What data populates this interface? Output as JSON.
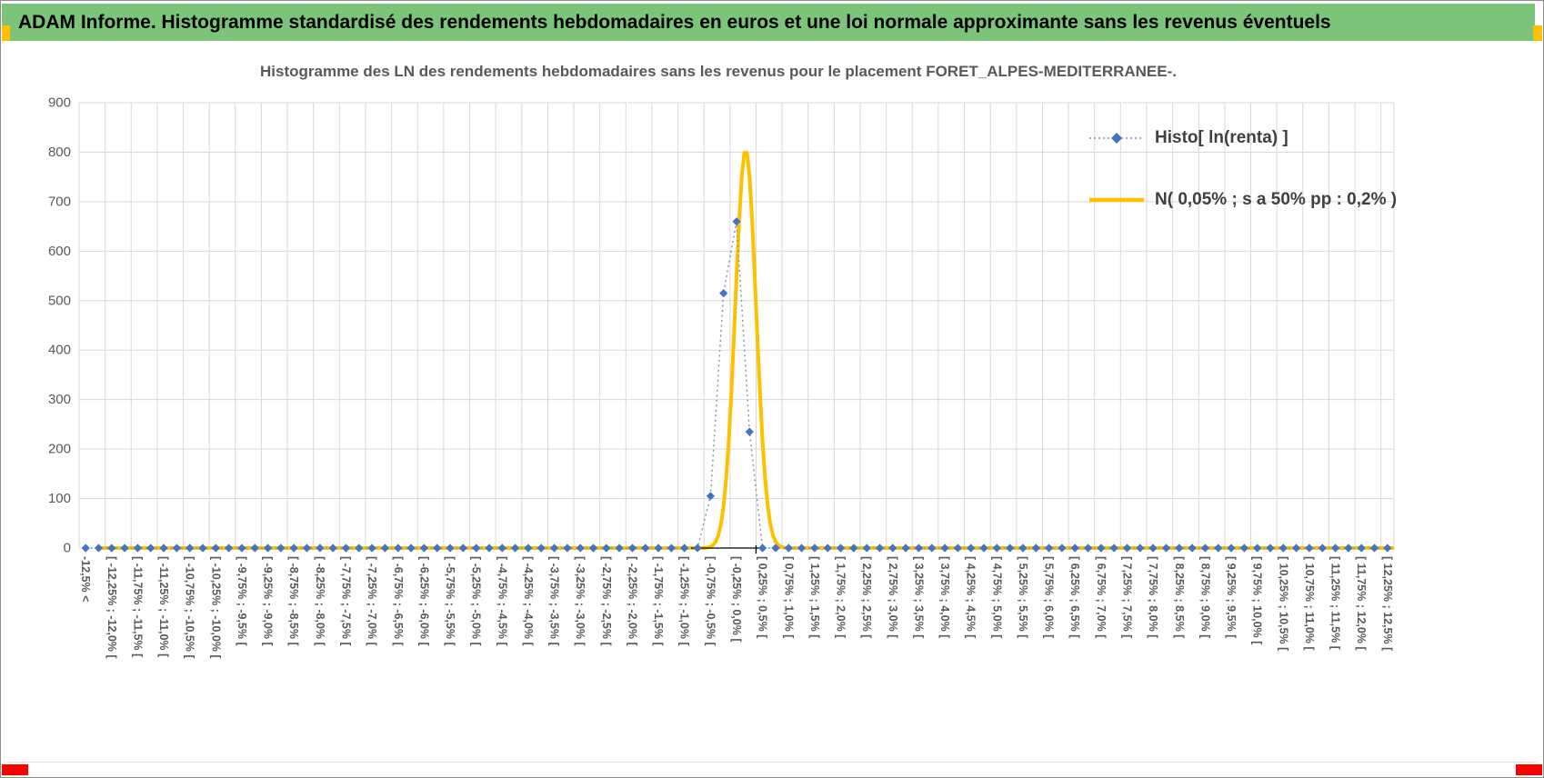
{
  "header": {
    "title": "ADAM Informe. Histogramme standardisé des rendements hebdomadaires en euros et une loi normale approximante sans les revenus éventuels",
    "bar_color": "#7cc47a",
    "accent_top_color": "#ffc000",
    "accent_bottom_color": "#ff0000"
  },
  "chart_data": {
    "type": "line",
    "title": "Histogramme des LN des rendements hebdomadaires sans les revenus pour le placement FORET_ALPES-MEDITERRANEE-.",
    "ylim": [
      0,
      900
    ],
    "ytick_step": 100,
    "grid": true,
    "legend_position": "inside-top-right",
    "bins": {
      "count": 101,
      "start_pct": -12.5,
      "width_pct": 0.25,
      "first_bin": "under -12,5%",
      "label_every_n_bins": 2
    },
    "x_axis_labels": [
      "-12,5% <",
      "[ -12,25% ; -12,0% [",
      "[ -11,75% ; -11,5% [",
      "[ -11,25% ; -11,0% [",
      "[ -10,75% ; -10,5% [",
      "[ -10,25% ; -10,0% [",
      "[ -9,75% ; -9,5% [",
      "[ -9,25% ; -9,0% [",
      "[ -8,75% ; -8,5% [",
      "[ -8,25% ; -8,0% [",
      "[ -7,75% ; -7,5% [",
      "[ -7,25% ; -7,0% [",
      "[ -6,75% ; -6,5% [",
      "[ -6,25% ; -6,0% [",
      "[ -5,75% ; -5,5% [",
      "[ -5,25% ; -5,0% [",
      "[ -4,75% ; -4,5% [",
      "[ -4,25% ; -4,0% [",
      "[ -3,75% ; -3,5% [",
      "[ -3,25% ; -3,0% [",
      "[ -2,75% ; -2,5% [",
      "[ -2,25% ; -2,0% [",
      "[ -1,75% ; -1,5% [",
      "[ -1,25% ; -1,0% [",
      "[ -0,75% ; -0,5% [",
      "[ -0,25% ; 0,0% [",
      "[ 0,25% ; 0,5% [",
      "[ 0,75% ; 1,0% [",
      "[ 1,25% ; 1,5% [",
      "[ 1,75% ; 2,0% [",
      "[ 2,25% ; 2,5% [",
      "[ 2,75% ; 3,0% [",
      "[ 3,25% ; 3,5% [",
      "[ 3,75% ; 4,0% [",
      "[ 4,25% ; 4,5% [",
      "[ 4,75% ; 5,0% [",
      "[ 5,25% ; 5,5% [",
      "[ 5,75% ; 6,0% [",
      "[ 6,25% ; 6,5% [",
      "[ 6,75% ; 7,0% [",
      "[ 7,25% ; 7,5% [",
      "[ 7,75% ; 8,0% [",
      "[ 8,25% ; 8,5% [",
      "[ 8,75% ; 9,0% [",
      "[ 9,25% ; 9,5% [",
      "[ 9,75% ; 10,0% [",
      "[ 10,25% ; 10,5% [",
      "[ 10,75% ; 11,0% [",
      "[ 11,25% ; 11,5% [",
      "[ 11,75% ; 12,0% [",
      "[ 12,25% ; 12,5% ["
    ],
    "series": [
      {
        "name": "Histo[ ln(renta) ]",
        "marker": "diamond",
        "marker_color": "#4472c4",
        "line_style": "dotted",
        "line_color": "#8496b0",
        "values": [
          0,
          0,
          0,
          0,
          0,
          0,
          0,
          0,
          0,
          0,
          0,
          0,
          0,
          0,
          0,
          0,
          0,
          0,
          0,
          0,
          0,
          0,
          0,
          0,
          0,
          0,
          0,
          0,
          0,
          0,
          0,
          0,
          0,
          0,
          0,
          0,
          0,
          0,
          0,
          0,
          0,
          0,
          0,
          0,
          0,
          0,
          0,
          0,
          105,
          515,
          660,
          235,
          0,
          0,
          0,
          0,
          0,
          0,
          0,
          0,
          0,
          0,
          0,
          0,
          0,
          0,
          0,
          0,
          0,
          0,
          0,
          0,
          0,
          0,
          0,
          0,
          0,
          0,
          0,
          0,
          0,
          0,
          0,
          0,
          0,
          0,
          0,
          0,
          0,
          0,
          0,
          0,
          0,
          0,
          0,
          0,
          0,
          0,
          0,
          0,
          0
        ],
        "peak_values": {
          "[ -0,75% ; -0,5% [": 105,
          "[ -0,5% ; -0,25% [": 515,
          "[ -0,25% ; 0,0% [": 660,
          "[ 0,0% ; 0,25% [": 235
        }
      },
      {
        "name": "N( 0,05% ; s a 50% pp : 0,2% )",
        "line_color": "#ffc000",
        "line_width": 4,
        "gaussian": {
          "mean_pct": 0.05,
          "sd_pct": 0.2,
          "peak": 805
        }
      }
    ]
  }
}
